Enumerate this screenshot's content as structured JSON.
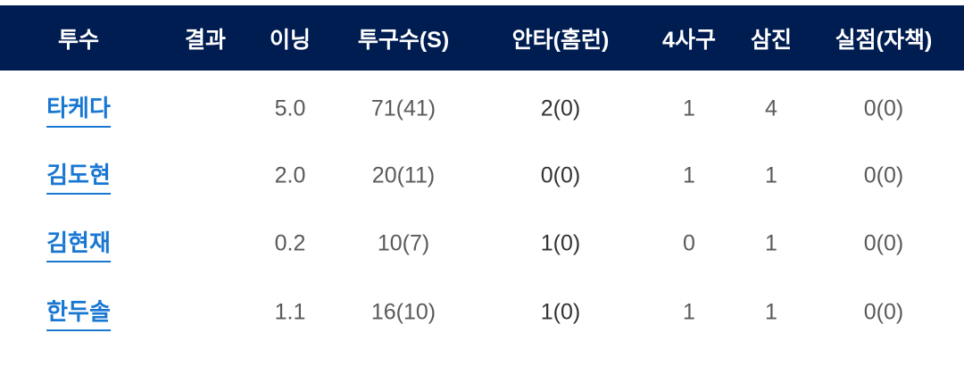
{
  "columns": [
    "투수",
    "결과",
    "이닝",
    "투구수(S)",
    "안타(홈런)",
    "4사구",
    "삼진",
    "실점(자책)"
  ],
  "rows": [
    {
      "pitcher": "타케다",
      "result": "",
      "innings": "5.0",
      "pitches": "71(41)",
      "hits": "2(0)",
      "walks": "1",
      "strikeouts": "4",
      "runs": "0(0)"
    },
    {
      "pitcher": "김도현",
      "result": "",
      "innings": "2.0",
      "pitches": "20(11)",
      "hits": "0(0)",
      "walks": "1",
      "strikeouts": "1",
      "runs": "0(0)"
    },
    {
      "pitcher": "김현재",
      "result": "",
      "innings": "0.2",
      "pitches": "10(7)",
      "hits": "1(0)",
      "walks": "0",
      "strikeouts": "1",
      "runs": "0(0)"
    },
    {
      "pitcher": "한두솔",
      "result": "",
      "innings": "1.1",
      "pitches": "16(10)",
      "hits": "1(0)",
      "walks": "1",
      "strikeouts": "1",
      "runs": "0(0)"
    }
  ],
  "colors": {
    "header_bg": "#001d52",
    "link": "#1877d2",
    "text": "#5a5a5a"
  }
}
